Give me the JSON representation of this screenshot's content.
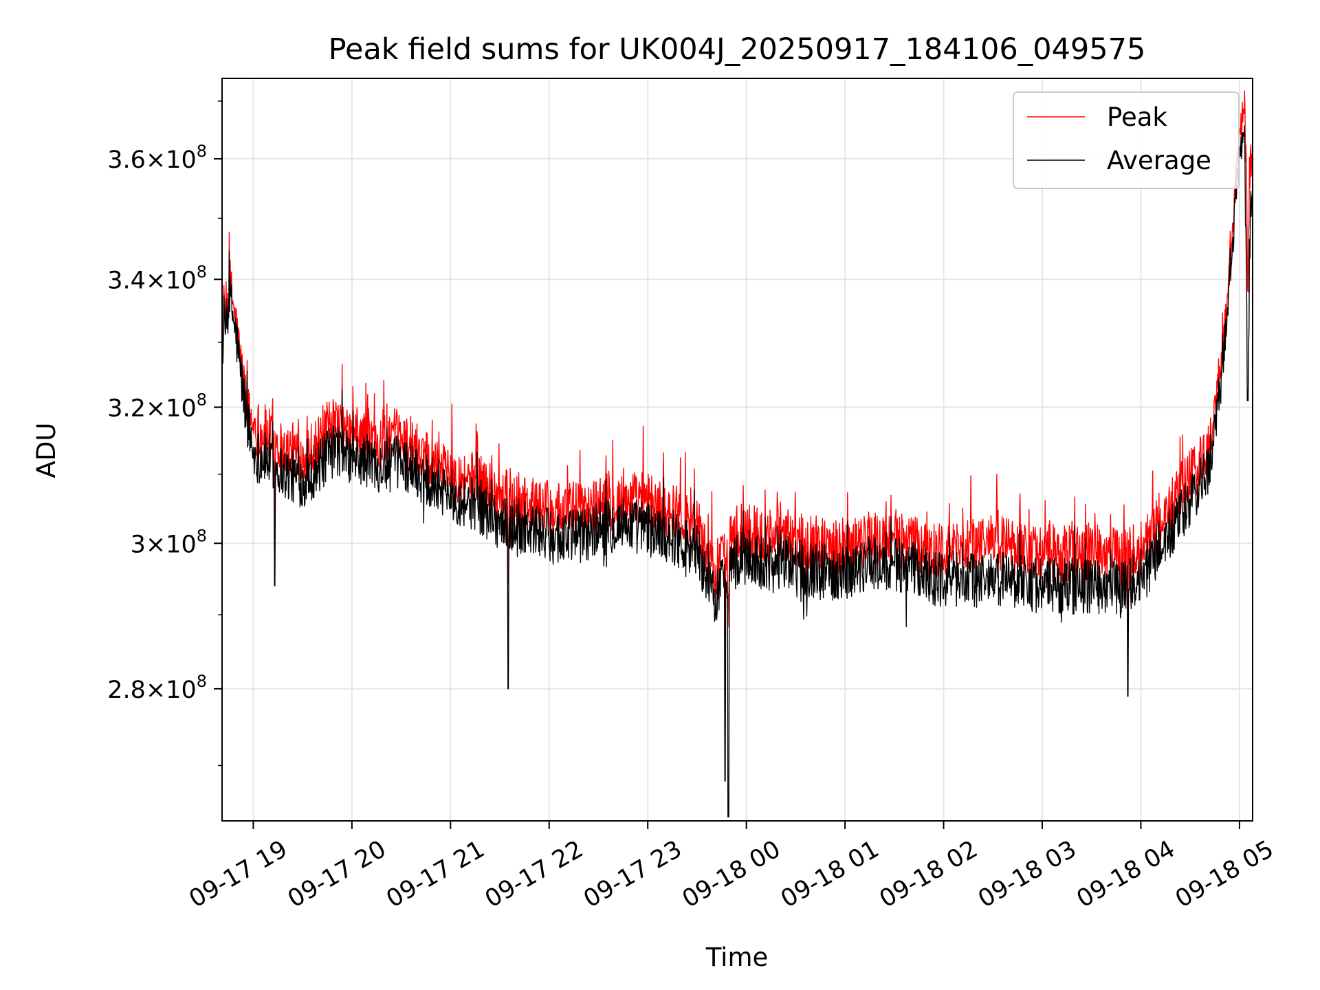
{
  "chart_data": {
    "type": "line",
    "title": "Peak field sums for UK004J_20250917_184106_049575",
    "xlabel": "Time",
    "ylabel": "ADU",
    "y_scale": "log",
    "xlim": [
      "2025-09-17T18:41:00",
      "2025-09-18T05:08:00"
    ],
    "ylim": [
      263000000,
      374000000
    ],
    "x_ticks": [
      {
        "t": "2025-09-17T19:00",
        "label": "09-17 19"
      },
      {
        "t": "2025-09-17T20:00",
        "label": "09-17 20"
      },
      {
        "t": "2025-09-17T21:00",
        "label": "09-17 21"
      },
      {
        "t": "2025-09-17T22:00",
        "label": "09-17 22"
      },
      {
        "t": "2025-09-17T23:00",
        "label": "09-17 23"
      },
      {
        "t": "2025-09-18T00:00",
        "label": "09-18 00"
      },
      {
        "t": "2025-09-18T01:00",
        "label": "09-18 01"
      },
      {
        "t": "2025-09-18T02:00",
        "label": "09-18 02"
      },
      {
        "t": "2025-09-18T03:00",
        "label": "09-18 03"
      },
      {
        "t": "2025-09-18T04:00",
        "label": "09-18 04"
      },
      {
        "t": "2025-09-18T05:00",
        "label": "09-18 05"
      }
    ],
    "y_ticks": [
      {
        "v": 280000000,
        "mant": "2.8",
        "exp": "8"
      },
      {
        "v": 300000000,
        "mant": "3",
        "exp": "8"
      },
      {
        "v": 320000000,
        "mant": "3.2",
        "exp": "8"
      },
      {
        "v": 340000000,
        "mant": "3.4",
        "exp": "8"
      },
      {
        "v": 360000000,
        "mant": "3.6",
        "exp": "8"
      }
    ],
    "grid": true,
    "legend_position": "top-right",
    "colors": {
      "peak": "#ff0000",
      "average": "#000000",
      "grid": "#e6e6e6"
    },
    "series": [
      {
        "name": "Peak",
        "color": "#ff0000",
        "points": [
          [
            "2025-09-17T18:41",
            330000000
          ],
          [
            "2025-09-17T18:46",
            339000000
          ],
          [
            "2025-09-17T18:50",
            331000000
          ],
          [
            "2025-09-17T18:55",
            321000000
          ],
          [
            "2025-09-17T19:00",
            316000000
          ],
          [
            "2025-09-17T19:10",
            315000000
          ],
          [
            "2025-09-17T19:20",
            313000000
          ],
          [
            "2025-09-17T19:30",
            312000000
          ],
          [
            "2025-09-17T19:40",
            314000000
          ],
          [
            "2025-09-17T19:50",
            317000000
          ],
          [
            "2025-09-17T20:00",
            315000000
          ],
          [
            "2025-09-17T20:10",
            315000000
          ],
          [
            "2025-09-17T20:20",
            314000000
          ],
          [
            "2025-09-17T20:30",
            315000000
          ],
          [
            "2025-09-17T20:40",
            313000000
          ],
          [
            "2025-09-17T20:50",
            312000000
          ],
          [
            "2025-09-17T21:00",
            310000000
          ],
          [
            "2025-09-17T21:10",
            309000000
          ],
          [
            "2025-09-17T21:20",
            308000000
          ],
          [
            "2025-09-17T21:30",
            306000000
          ],
          [
            "2025-09-17T21:40",
            305000000
          ],
          [
            "2025-09-17T21:50",
            305000000
          ],
          [
            "2025-09-17T22:00",
            304000000
          ],
          [
            "2025-09-17T22:15",
            304000000
          ],
          [
            "2025-09-17T22:30",
            305000000
          ],
          [
            "2025-09-17T22:45",
            306000000
          ],
          [
            "2025-09-17T23:00",
            305000000
          ],
          [
            "2025-09-17T23:15",
            304000000
          ],
          [
            "2025-09-17T23:30",
            302000000
          ],
          [
            "2025-09-17T23:40",
            295000000
          ],
          [
            "2025-09-17T23:50",
            300000000
          ],
          [
            "2025-09-18T00:00",
            301000000
          ],
          [
            "2025-09-18T00:15",
            300000000
          ],
          [
            "2025-09-18T00:30",
            300000000
          ],
          [
            "2025-09-18T00:45",
            299000000
          ],
          [
            "2025-09-18T01:00",
            299000000
          ],
          [
            "2025-09-18T01:15",
            300000000
          ],
          [
            "2025-09-18T01:30",
            300000000
          ],
          [
            "2025-09-18T01:45",
            299000000
          ],
          [
            "2025-09-18T02:00",
            298000000
          ],
          [
            "2025-09-18T02:15",
            299000000
          ],
          [
            "2025-09-18T02:30",
            300000000
          ],
          [
            "2025-09-18T02:45",
            299000000
          ],
          [
            "2025-09-18T03:00",
            298000000
          ],
          [
            "2025-09-18T03:15",
            298000000
          ],
          [
            "2025-09-18T03:30",
            298000000
          ],
          [
            "2025-09-18T03:45",
            298000000
          ],
          [
            "2025-09-18T04:00",
            298000000
          ],
          [
            "2025-09-18T04:10",
            302000000
          ],
          [
            "2025-09-18T04:20",
            305000000
          ],
          [
            "2025-09-18T04:30",
            309000000
          ],
          [
            "2025-09-18T04:40",
            312000000
          ],
          [
            "2025-09-18T04:45",
            318000000
          ],
          [
            "2025-09-18T04:50",
            328000000
          ],
          [
            "2025-09-18T04:54",
            342000000
          ],
          [
            "2025-09-18T04:58",
            356000000
          ],
          [
            "2025-09-18T05:01",
            365000000
          ],
          [
            "2025-09-18T05:03",
            372000000
          ],
          [
            "2025-09-18T05:05",
            345000000
          ],
          [
            "2025-09-18T05:07",
            358000000
          ]
        ]
      },
      {
        "name": "Average",
        "color": "#000000",
        "points": [
          [
            "2025-09-17T18:41",
            329000000
          ],
          [
            "2025-09-17T18:46",
            337000000
          ],
          [
            "2025-09-17T18:50",
            330000000
          ],
          [
            "2025-09-17T18:55",
            320000000
          ],
          [
            "2025-09-17T19:00",
            313000000
          ],
          [
            "2025-09-17T19:10",
            312000000
          ],
          [
            "2025-09-17T19:20",
            310000000
          ],
          [
            "2025-09-17T19:30",
            309000000
          ],
          [
            "2025-09-17T19:40",
            311000000
          ],
          [
            "2025-09-17T19:50",
            314000000
          ],
          [
            "2025-09-17T20:00",
            312000000
          ],
          [
            "2025-09-17T20:10",
            312000000
          ],
          [
            "2025-09-17T20:20",
            311000000
          ],
          [
            "2025-09-17T20:30",
            312000000
          ],
          [
            "2025-09-17T20:40",
            310000000
          ],
          [
            "2025-09-17T20:50",
            309000000
          ],
          [
            "2025-09-17T21:00",
            307000000
          ],
          [
            "2025-09-17T21:10",
            306000000
          ],
          [
            "2025-09-17T21:20",
            305000000
          ],
          [
            "2025-09-17T21:30",
            303000000
          ],
          [
            "2025-09-17T21:40",
            302000000
          ],
          [
            "2025-09-17T21:50",
            302000000
          ],
          [
            "2025-09-17T22:00",
            301000000
          ],
          [
            "2025-09-17T22:15",
            301000000
          ],
          [
            "2025-09-17T22:30",
            302000000
          ],
          [
            "2025-09-17T22:45",
            303000000
          ],
          [
            "2025-09-17T23:00",
            302000000
          ],
          [
            "2025-09-17T23:15",
            301000000
          ],
          [
            "2025-09-17T23:30",
            299000000
          ],
          [
            "2025-09-17T23:40",
            292000000
          ],
          [
            "2025-09-17T23:50",
            297000000
          ],
          [
            "2025-09-18T00:00",
            298000000
          ],
          [
            "2025-09-18T00:15",
            297000000
          ],
          [
            "2025-09-18T00:30",
            297000000
          ],
          [
            "2025-09-18T00:45",
            296000000
          ],
          [
            "2025-09-18T01:00",
            296000000
          ],
          [
            "2025-09-18T01:15",
            297000000
          ],
          [
            "2025-09-18T01:30",
            297000000
          ],
          [
            "2025-09-18T01:45",
            296000000
          ],
          [
            "2025-09-18T02:00",
            295000000
          ],
          [
            "2025-09-18T02:15",
            295000000
          ],
          [
            "2025-09-18T02:30",
            295000000
          ],
          [
            "2025-09-18T02:45",
            295000000
          ],
          [
            "2025-09-18T03:00",
            294000000
          ],
          [
            "2025-09-18T03:15",
            294000000
          ],
          [
            "2025-09-18T03:30",
            294000000
          ],
          [
            "2025-09-18T03:45",
            294000000
          ],
          [
            "2025-09-18T04:00",
            295000000
          ],
          [
            "2025-09-18T04:10",
            299000000
          ],
          [
            "2025-09-18T04:20",
            302000000
          ],
          [
            "2025-09-18T04:30",
            306000000
          ],
          [
            "2025-09-18T04:40",
            310000000
          ],
          [
            "2025-09-18T04:45",
            316000000
          ],
          [
            "2025-09-18T04:50",
            326000000
          ],
          [
            "2025-09-18T04:54",
            340000000
          ],
          [
            "2025-09-18T04:58",
            354000000
          ],
          [
            "2025-09-18T05:01",
            362000000
          ],
          [
            "2025-09-18T05:03",
            368000000
          ],
          [
            "2025-09-18T05:05",
            322000000
          ],
          [
            "2025-09-18T05:07",
            352000000
          ]
        ]
      }
    ],
    "annotations": {
      "noise_amplitude": 4000000,
      "notable_dips": [
        [
          "2025-09-17T19:13",
          294000000
        ],
        [
          "2025-09-17T21:35",
          280000000
        ],
        [
          "2025-09-17T23:47",
          268000000
        ],
        [
          "2025-09-17T23:49",
          263500000
        ],
        [
          "2025-09-18T03:52",
          279000000
        ],
        [
          "2025-09-18T05:05",
          321000000
        ]
      ]
    }
  }
}
